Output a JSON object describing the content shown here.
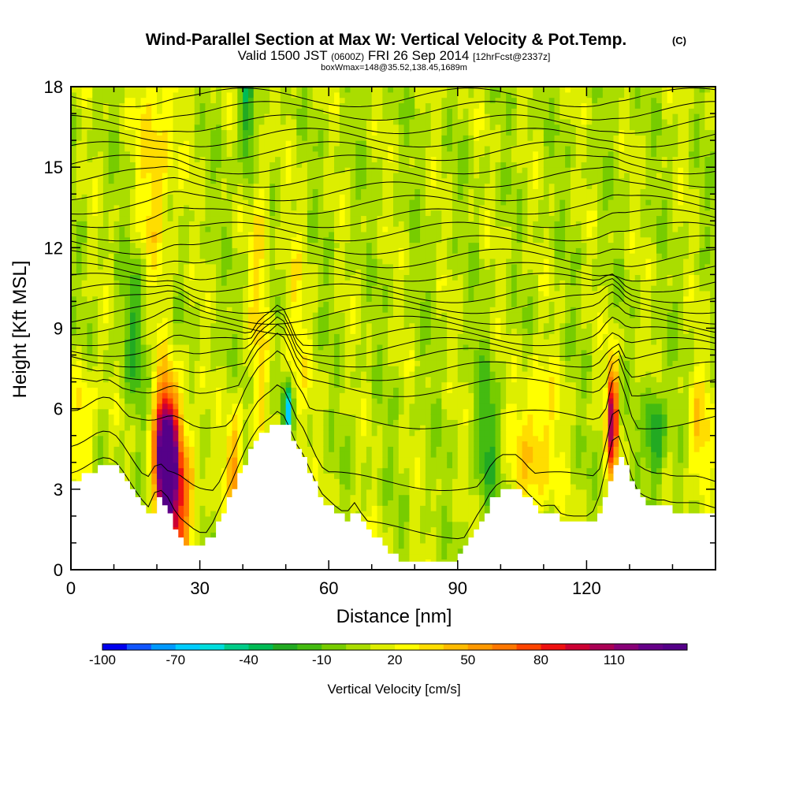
{
  "chart_data": {
    "type": "heatmap",
    "title": "Wind-Parallel Section at Max W: Vertical Velocity & Pot.Temp.",
    "title_mark": "(C)",
    "subtitle": {
      "valid": "Valid 1500 JST",
      "utc": "(0600Z)",
      "date": "FRI 26 Sep 2014",
      "fcst": "[12hrFcst@2337z]"
    },
    "box_info": "boxWmax=148@35.52,138.45,1689m",
    "xlabel": "Distance [nm]",
    "ylabel": "Height [Kft MSL]",
    "xlim": [
      0,
      150
    ],
    "ylim": [
      0,
      18
    ],
    "x_ticks": [
      0,
      30,
      60,
      90,
      120
    ],
    "y_ticks": [
      0,
      3,
      6,
      9,
      12,
      15,
      18
    ],
    "colorbar": {
      "label": "Vertical Velocity [cm/s]",
      "range": [
        -100,
        140
      ],
      "step": 10,
      "tick_labels": [
        "-100",
        "-70",
        "-40",
        "-10",
        "20",
        "50",
        "80",
        "110"
      ],
      "colors": [
        "#0000ee",
        "#1155ff",
        "#0099ff",
        "#00ccff",
        "#00dddd",
        "#00cc88",
        "#00bb55",
        "#22aa22",
        "#44bb11",
        "#77cc00",
        "#aadd00",
        "#ddee00",
        "#ffff00",
        "#ffdd00",
        "#ffbb00",
        "#ff9900",
        "#ff7700",
        "#ff4400",
        "#ee1111",
        "#cc0033",
        "#aa0055",
        "#880077",
        "#660088",
        "#550088"
      ]
    },
    "terrain_kft": {
      "x": [
        0,
        2,
        4,
        6,
        8,
        10,
        12,
        14,
        16,
        18,
        20,
        22,
        24,
        26,
        28,
        30,
        32,
        34,
        36,
        38,
        40,
        42,
        44,
        46,
        48,
        50,
        52,
        54,
        56,
        58,
        60,
        62,
        64,
        66,
        68,
        70,
        72,
        74,
        76,
        78,
        80,
        82,
        84,
        86,
        88,
        90,
        92,
        94,
        96,
        98,
        100,
        102,
        104,
        106,
        108,
        110,
        112,
        114,
        116,
        118,
        120,
        122,
        124,
        126,
        128,
        130,
        132,
        134,
        136,
        138,
        140,
        142,
        144,
        146,
        148,
        150
      ],
      "y": [
        3.3,
        3.4,
        3.6,
        3.8,
        3.9,
        3.8,
        3.4,
        2.9,
        2.4,
        2.0,
        2.6,
        2.2,
        1.5,
        1.0,
        1.0,
        1.0,
        1.1,
        1.8,
        2.5,
        3.2,
        4.0,
        4.6,
        5.1,
        5.3,
        5.6,
        5.4,
        4.5,
        4.0,
        3.3,
        2.6,
        2.3,
        2.0,
        1.8,
        2.2,
        1.7,
        1.3,
        0.9,
        0.5,
        0.4,
        0.3,
        0.3,
        0.3,
        0.3,
        0.4,
        0.3,
        0.6,
        1.0,
        1.6,
        2.1,
        2.7,
        3.0,
        3.0,
        3.0,
        2.6,
        2.3,
        2.0,
        2.2,
        1.8,
        1.7,
        1.7,
        1.7,
        1.9,
        2.7,
        3.8,
        4.3,
        3.3,
        2.6,
        2.4,
        2.3,
        2.3,
        2.2,
        2.2,
        2.2,
        2.2,
        2.1,
        2.0
      ]
    },
    "updrafts": [
      {
        "x": 22,
        "z": 4.0,
        "w": 148,
        "sx": 1.8,
        "sz": 1.8
      },
      {
        "x": 25,
        "z": 2.5,
        "w": 60,
        "sx": 2.8,
        "sz": 2.6
      },
      {
        "x": 126,
        "z": 5.6,
        "w": 95,
        "sx": 0.9,
        "sz": 1.6
      },
      {
        "x": 38,
        "z": 3.8,
        "w": 45,
        "sx": 1.5,
        "sz": 1.6
      },
      {
        "x": 20,
        "z": 15.5,
        "w": 30,
        "sx": 3.0,
        "sz": 3.5
      },
      {
        "x": 52,
        "z": 8.0,
        "w": 20,
        "sx": 2.0,
        "sz": 3.0
      },
      {
        "x": 108,
        "z": 4.5,
        "w": 35,
        "sx": 3.5,
        "sz": 2.0
      },
      {
        "x": 3,
        "z": 5.5,
        "w": 30,
        "sx": 2.0,
        "sz": 1.5
      },
      {
        "x": 44,
        "z": 11.0,
        "w": 25,
        "sx": 1.5,
        "sz": 4.5
      },
      {
        "x": 146,
        "z": 5.0,
        "w": 30,
        "sx": 2.0,
        "sz": 1.5
      }
    ],
    "downdrafts": [
      {
        "x": 50.5,
        "z": 5.9,
        "w": -75,
        "sx": 0.8,
        "sz": 0.8
      },
      {
        "x": 41,
        "z": 17.0,
        "w": -40,
        "sx": 1.2,
        "sz": 1.8
      },
      {
        "x": 136,
        "z": 5.0,
        "w": -45,
        "sx": 1.5,
        "sz": 1.2
      },
      {
        "x": 15,
        "z": 9.0,
        "w": -25,
        "sx": 2.0,
        "sz": 2.0
      },
      {
        "x": 97,
        "z": 5.0,
        "w": -25,
        "sx": 2.0,
        "sz": 2.0
      }
    ],
    "isentrope_bases_kft": [
      1.5,
      3.3,
      5.6,
      6.8,
      7.4,
      7.9,
      8.3,
      8.7,
      9.1,
      9.5,
      9.9,
      10.3,
      10.7,
      11.1,
      11.6,
      12.1,
      12.6,
      13.1,
      13.6,
      14.1,
      14.6,
      15.1,
      15.6,
      16.1,
      16.6,
      17.1,
      17.6
    ]
  }
}
